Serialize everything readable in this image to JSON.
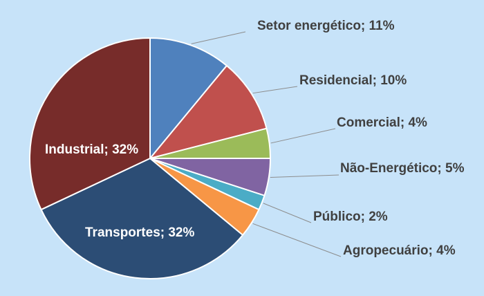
{
  "chart_data": {
    "type": "pie",
    "slices": [
      {
        "name": "Setor energético",
        "value": 11,
        "label": "Setor energético; 11%",
        "color": "#4f81bd"
      },
      {
        "name": "Residencial",
        "value": 10,
        "label": "Residencial; 10%",
        "color": "#c0504d"
      },
      {
        "name": "Comercial",
        "value": 4,
        "label": "Comercial; 4%",
        "color": "#9bbb59"
      },
      {
        "name": "Não-Energético",
        "value": 5,
        "label": "Não-Energético; 5%",
        "color": "#8064a2"
      },
      {
        "name": "Público",
        "value": 2,
        "label": "Público; 2%",
        "color": "#4bacc6"
      },
      {
        "name": "Agropecuário",
        "value": 4,
        "label": "Agropecuário; 4%",
        "color": "#f79646"
      },
      {
        "name": "Transportes",
        "value": 32,
        "label": "Transportes; 32%",
        "color": "#2c4d75"
      },
      {
        "name": "Industrial",
        "value": 32,
        "label": "Industrial; 32%",
        "color": "#772c2a"
      }
    ],
    "label_position": "outside-right with leader lines; Transportes and Industrial labels inside",
    "background": "#c7e3f9"
  }
}
